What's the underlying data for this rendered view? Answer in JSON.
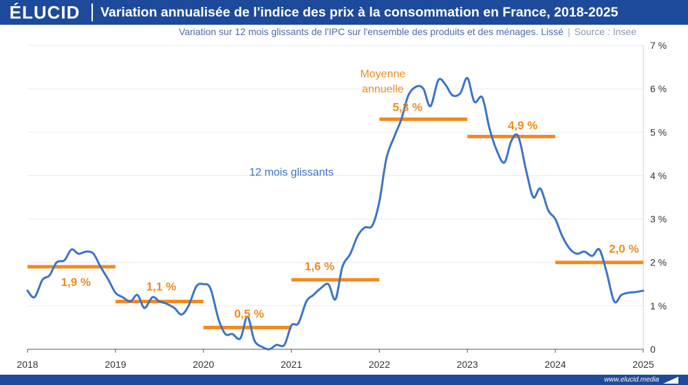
{
  "brand": {
    "logo_text": "ÉLUCID",
    "footer_url": "www.elucid.media"
  },
  "header": {
    "title": "Variation annualisée de l'indice des prix à la consommation en France, 2018-2025",
    "subtitle": "Variation sur 12 mois glissants de l'IPC sur l'ensemble des produits et des ménages. Lissé",
    "separator": "|",
    "source": "Source : Insee"
  },
  "colors": {
    "brand_blue": "#1d4a9a",
    "line_blue": "#3a73c8",
    "orange": "#f28a1e",
    "grid": "#e6e9ee",
    "axis_text": "#333333"
  },
  "chart_data": {
    "type": "line",
    "xlim": [
      2018,
      2025
    ],
    "ylim": [
      0,
      7
    ],
    "x_ticks": [
      2018,
      2019,
      2020,
      2021,
      2022,
      2023,
      2024,
      2025
    ],
    "x_tick_labels": [
      "2018",
      "2019",
      "2020",
      "2021",
      "2022",
      "2023",
      "2024",
      "2025"
    ],
    "y_ticks": [
      0,
      1,
      2,
      3,
      4,
      5,
      6,
      7
    ],
    "y_tick_labels": [
      "0",
      "1 %",
      "2 %",
      "3 %",
      "4 %",
      "5 %",
      "6 %",
      "7 %"
    ],
    "grid": "horizontal",
    "y_axis_side": "right",
    "series": [
      {
        "name": "12 mois glissants",
        "points": [
          [
            2018.0,
            1.35
          ],
          [
            2018.08,
            1.2
          ],
          [
            2018.17,
            1.6
          ],
          [
            2018.25,
            1.7
          ],
          [
            2018.33,
            2.0
          ],
          [
            2018.42,
            2.05
          ],
          [
            2018.5,
            2.3
          ],
          [
            2018.58,
            2.2
          ],
          [
            2018.67,
            2.25
          ],
          [
            2018.75,
            2.2
          ],
          [
            2018.83,
            1.9
          ],
          [
            2018.92,
            1.6
          ],
          [
            2019.0,
            1.3
          ],
          [
            2019.08,
            1.2
          ],
          [
            2019.17,
            1.1
          ],
          [
            2019.25,
            1.25
          ],
          [
            2019.33,
            0.95
          ],
          [
            2019.42,
            1.2
          ],
          [
            2019.5,
            1.1
          ],
          [
            2019.58,
            1.05
          ],
          [
            2019.67,
            0.95
          ],
          [
            2019.75,
            0.8
          ],
          [
            2019.83,
            1.0
          ],
          [
            2019.92,
            1.45
          ],
          [
            2020.0,
            1.5
          ],
          [
            2020.08,
            1.4
          ],
          [
            2020.17,
            0.7
          ],
          [
            2020.25,
            0.35
          ],
          [
            2020.33,
            0.35
          ],
          [
            2020.42,
            0.25
          ],
          [
            2020.5,
            0.75
          ],
          [
            2020.58,
            0.2
          ],
          [
            2020.67,
            0.05
          ],
          [
            2020.75,
            0.0
          ],
          [
            2020.83,
            0.1
          ],
          [
            2020.92,
            0.1
          ],
          [
            2021.0,
            0.55
          ],
          [
            2021.08,
            0.6
          ],
          [
            2021.17,
            1.1
          ],
          [
            2021.25,
            1.25
          ],
          [
            2021.33,
            1.4
          ],
          [
            2021.42,
            1.5
          ],
          [
            2021.5,
            1.15
          ],
          [
            2021.58,
            1.9
          ],
          [
            2021.67,
            2.2
          ],
          [
            2021.75,
            2.6
          ],
          [
            2021.83,
            2.8
          ],
          [
            2021.92,
            2.85
          ],
          [
            2022.0,
            3.4
          ],
          [
            2022.08,
            4.4
          ],
          [
            2022.17,
            4.9
          ],
          [
            2022.25,
            5.3
          ],
          [
            2022.33,
            5.85
          ],
          [
            2022.42,
            6.05
          ],
          [
            2022.5,
            6.0
          ],
          [
            2022.58,
            5.6
          ],
          [
            2022.67,
            6.2
          ],
          [
            2022.75,
            6.1
          ],
          [
            2022.83,
            5.85
          ],
          [
            2022.92,
            5.9
          ],
          [
            2023.0,
            6.25
          ],
          [
            2023.08,
            5.7
          ],
          [
            2023.17,
            5.8
          ],
          [
            2023.25,
            5.1
          ],
          [
            2023.33,
            4.6
          ],
          [
            2023.42,
            4.3
          ],
          [
            2023.5,
            4.8
          ],
          [
            2023.58,
            4.9
          ],
          [
            2023.67,
            4.1
          ],
          [
            2023.75,
            3.5
          ],
          [
            2023.83,
            3.7
          ],
          [
            2023.92,
            3.2
          ],
          [
            2024.0,
            3.0
          ],
          [
            2024.08,
            2.6
          ],
          [
            2024.17,
            2.3
          ],
          [
            2024.25,
            2.2
          ],
          [
            2024.33,
            2.25
          ],
          [
            2024.42,
            2.15
          ],
          [
            2024.5,
            2.3
          ],
          [
            2024.58,
            1.8
          ],
          [
            2024.67,
            1.1
          ],
          [
            2024.75,
            1.25
          ],
          [
            2024.83,
            1.3
          ],
          [
            2024.92,
            1.32
          ],
          [
            2025.0,
            1.35
          ]
        ]
      },
      {
        "name": "Moyenne annuelle",
        "segments": [
          {
            "x0": 2018,
            "x1": 2019,
            "value": 1.9,
            "label": "1,9 %"
          },
          {
            "x0": 2019,
            "x1": 2020,
            "value": 1.1,
            "label": "1,1 %"
          },
          {
            "x0": 2020,
            "x1": 2021,
            "value": 0.5,
            "label": "0,5 %"
          },
          {
            "x0": 2021,
            "x1": 2022,
            "value": 1.6,
            "label": "1,6 %"
          },
          {
            "x0": 2022,
            "x1": 2023,
            "value": 5.3,
            "label": "5,3 %"
          },
          {
            "x0": 2023,
            "x1": 2024,
            "value": 4.9,
            "label": "4,9 %"
          },
          {
            "x0": 2024,
            "x1": 2025,
            "value": 2.0,
            "label": "2,0 %"
          }
        ]
      }
    ],
    "annotations": [
      {
        "text": "12 mois glissants",
        "x": 2021.0,
        "y": 4.0
      },
      {
        "text": "Moyenne",
        "x": 2022.25,
        "y": 6.2
      },
      {
        "text": "annuelle",
        "x": 2022.25,
        "y": 5.85
      }
    ]
  }
}
